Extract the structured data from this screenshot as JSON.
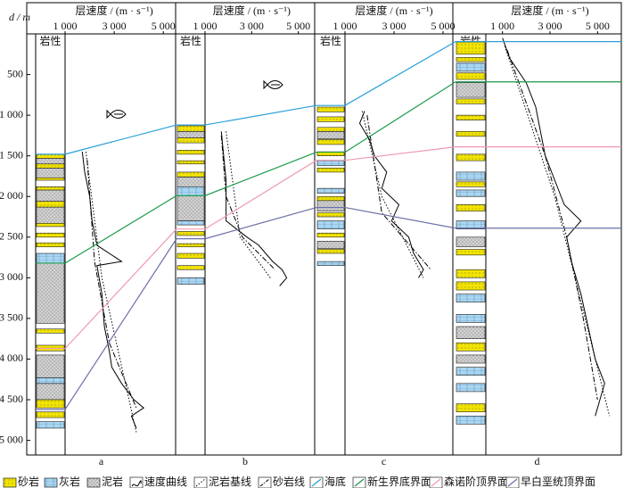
{
  "chart_data": {
    "type": "well-correlation",
    "depth_label": "d / m",
    "ylim": [
      0,
      5180
    ],
    "yticks": [
      500,
      {
        "value": 1000,
        "label": "1 000"
      },
      {
        "value": 1500,
        "label": "1 500"
      },
      {
        "value": 2000,
        "label": "2 000"
      },
      {
        "value": 2500,
        "label": "2 500"
      },
      {
        "value": 3000,
        "label": "3 000"
      },
      {
        "value": 3500,
        "label": "3 500"
      },
      {
        "value": 4000,
        "label": "4 000"
      },
      {
        "value": 4500,
        "label": "4 500"
      },
      {
        "value": 5000,
        "label": "5 000"
      }
    ],
    "rock_colors": {
      "sandstone": "#f2e400",
      "limestone": "#a9d6f2",
      "mudstone": "#d2d2d2"
    },
    "wells": [
      {
        "label": "a",
        "track_title": "层速度 / (m · s⁻¹)",
        "lith_title": "岩性",
        "xlim": [
          1000,
          5500
        ],
        "xticks": [
          {
            "value": 1000,
            "label": "1 000"
          },
          {
            "value": 3000,
            "label": "3 000"
          },
          {
            "value": 5000,
            "label": "5 000"
          }
        ],
        "sandstone": [
          [
            1480,
            1530
          ],
          [
            1600,
            1650
          ],
          [
            1770,
            1800
          ],
          [
            1880,
            1920
          ],
          [
            2060,
            2130
          ],
          [
            2330,
            2370
          ],
          [
            2450,
            2500
          ],
          [
            2570,
            2620
          ],
          [
            3630,
            3680
          ],
          [
            3830,
            3900
          ],
          [
            4500,
            4600
          ],
          [
            4650,
            4720
          ]
        ],
        "limestone": [
          [
            2700,
            2820
          ],
          [
            4230,
            4300
          ],
          [
            4770,
            4850
          ]
        ],
        "mudstone": [
          [
            1530,
            1600
          ],
          [
            1650,
            1770
          ],
          [
            1920,
            2060
          ],
          [
            2130,
            2330
          ],
          [
            2820,
            3560
          ],
          [
            3950,
            4230
          ],
          [
            4300,
            4500
          ]
        ],
        "velocity": {
          "depth": [
            1450,
            1700,
            2000,
            2300,
            2600,
            2800,
            2850,
            3200,
            3600,
            3900,
            4100,
            4300,
            4500,
            4600,
            4700,
            4850
          ],
          "values": [
            1700,
            1800,
            2000,
            2100,
            2300,
            3300,
            2300,
            2500,
            2600,
            2800,
            2900,
            3300,
            3800,
            4200,
            3700,
            3900
          ]
        },
        "baseline": {
          "depth": [
            1450,
            3000,
            4900
          ],
          "values": [
            1850,
            2500,
            3900
          ]
        },
        "sandline": {
          "depth": [
            1550,
            2800,
            3800,
            4600
          ],
          "values": [
            1900,
            2200,
            2800,
            3900
          ]
        }
      },
      {
        "label": "b",
        "track_title": "层速度 / (m · s⁻¹)",
        "lith_title": "岩性",
        "xlim": [
          1000,
          5700
        ],
        "xticks": [
          {
            "value": 1000,
            "label": "1 000"
          },
          {
            "value": 3000,
            "label": "3 000"
          },
          {
            "value": 5000,
            "label": "5 000"
          }
        ],
        "sandstone": [
          [
            1130,
            1200
          ],
          [
            1280,
            1340
          ],
          [
            1430,
            1480
          ],
          [
            1560,
            1600
          ],
          [
            1700,
            1760
          ],
          [
            2430,
            2480
          ],
          [
            2580,
            2620
          ],
          [
            2700,
            2760
          ],
          [
            2850,
            2900
          ]
        ],
        "limestone": [
          [
            1880,
            1990
          ],
          [
            2300,
            2350
          ],
          [
            3000,
            3080
          ]
        ],
        "mudstone": [
          [
            1200,
            1280
          ],
          [
            1760,
            1880
          ],
          [
            1990,
            2300
          ]
        ],
        "velocity": {
          "depth": [
            1200,
            1500,
            1800,
            2100,
            2300,
            2500,
            2600,
            2700,
            2800,
            2900,
            3000,
            3100
          ],
          "values": [
            1700,
            1800,
            1900,
            1900,
            1900,
            2800,
            3300,
            3600,
            3900,
            4300,
            4500,
            4200
          ]
        },
        "baseline": {
          "depth": [
            1200,
            2500,
            3000
          ],
          "values": [
            1900,
            2500,
            3800
          ]
        },
        "sandline": {
          "depth": [
            1250,
            2000,
            2500,
            2900
          ],
          "values": [
            1700,
            1900,
            2600,
            4000
          ]
        }
      },
      {
        "label": "c",
        "track_title": "层速度 / (m · s⁻¹)",
        "lith_title": "岩性",
        "xlim": [
          1000,
          5400
        ],
        "xticks": [
          {
            "value": 1000,
            "label": "1 000"
          },
          {
            "value": 3000,
            "label": "3 000"
          },
          {
            "value": 5000,
            "label": "5 000"
          }
        ],
        "sandstone": [
          [
            900,
            960
          ],
          [
            1020,
            1080
          ],
          [
            1150,
            1200
          ],
          [
            1300,
            1360
          ],
          [
            1450,
            1500
          ],
          [
            1650,
            1700
          ],
          [
            2000,
            2050
          ],
          [
            2200,
            2250
          ],
          [
            2450,
            2500
          ],
          [
            2650,
            2700
          ]
        ],
        "limestone": [
          [
            1560,
            1620
          ],
          [
            1900,
            1960
          ],
          [
            2300,
            2400
          ],
          [
            2800,
            2850
          ]
        ],
        "mudstone": [
          [
            1200,
            1290
          ],
          [
            2050,
            2180
          ],
          [
            2550,
            2640
          ]
        ],
        "velocity": {
          "depth": [
            950,
            1100,
            1300,
            1500,
            1700,
            1900,
            2100,
            2300,
            2500,
            2700,
            2900,
            3000
          ],
          "values": [
            1800,
            1600,
            2000,
            2200,
            2700,
            2500,
            3200,
            2900,
            3600,
            3800,
            4200,
            4000
          ]
        },
        "baseline": {
          "depth": [
            950,
            2000,
            3000
          ],
          "values": [
            1700,
            2500,
            4200
          ]
        },
        "sandline": {
          "depth": [
            1000,
            2200,
            2900
          ],
          "values": [
            1900,
            2500,
            4500
          ]
        }
      },
      {
        "label": "d",
        "track_title": "层速度 / (m · s⁻¹)",
        "lith_title": "岩性",
        "xlim": [
          300,
          6000
        ],
        "xticks": [
          {
            "value": 1000,
            "label": "1 000"
          },
          {
            "value": 3000,
            "label": "3 000"
          },
          {
            "value": 5000,
            "label": "5 000"
          }
        ],
        "sandstone": [
          [
            100,
            250
          ],
          [
            290,
            340
          ],
          [
            480,
            560
          ],
          [
            800,
            860
          ],
          [
            1000,
            1060
          ],
          [
            1200,
            1260
          ],
          [
            1480,
            1560
          ],
          [
            1820,
            1880
          ],
          [
            2100,
            2180
          ],
          [
            2650,
            2720
          ],
          [
            2900,
            3000
          ],
          [
            3050,
            3150
          ],
          [
            3800,
            3900
          ],
          [
            4550,
            4650
          ]
        ],
        "limestone": [
          [
            360,
            460
          ],
          [
            1700,
            1800
          ],
          [
            1920,
            2000
          ],
          [
            2300,
            2400
          ],
          [
            3200,
            3300
          ],
          [
            3450,
            3550
          ],
          [
            4100,
            4200
          ],
          [
            4300,
            4400
          ],
          [
            4700,
            4800
          ]
        ],
        "mudstone": [
          [
            600,
            780
          ],
          [
            2500,
            2620
          ],
          [
            3600,
            3750
          ],
          [
            3950,
            4050
          ]
        ],
        "velocity": {
          "depth": [
            50,
            300,
            600,
            900,
            1200,
            1500,
            1800,
            2100,
            2300,
            2500,
            2800,
            3200,
            3600,
            4000,
            4300,
            4500,
            4700
          ],
          "values": [
            1000,
            1300,
            2000,
            2400,
            2600,
            2800,
            3200,
            3600,
            4300,
            3700,
            3900,
            4300,
            4600,
            4900,
            5300,
            5100,
            4900
          ]
        },
        "baseline": {
          "depth": [
            150,
            2000,
            4700
          ],
          "values": [
            1100,
            3200,
            5500
          ]
        },
        "sandline": {
          "depth": [
            200,
            1500,
            2500,
            3500,
            4500
          ],
          "values": [
            1200,
            2800,
            3700,
            4400,
            5000
          ]
        }
      }
    ],
    "horizons": [
      {
        "name": "海底",
        "color": "#2a9fd8",
        "depths": [
          1480,
          1120,
          880,
          95
        ]
      },
      {
        "name": "新生界底界面",
        "color": "#1a9a4a",
        "depths": [
          2820,
          1990,
          1455,
          590
        ]
      },
      {
        "name": "森诺阶顶界面",
        "color": "#ef9ab0",
        "depths": [
          3870,
          2400,
          1555,
          1390
        ]
      },
      {
        "name": "早白垩统顶界面",
        "color": "#6b6fa8",
        "depths": [
          4620,
          2520,
          2135,
          2390
        ]
      }
    ],
    "legend": [
      "砂岩",
      "灰岩",
      "泥岩",
      "速度曲线",
      "泥岩基线",
      "砂岩线"
    ]
  }
}
